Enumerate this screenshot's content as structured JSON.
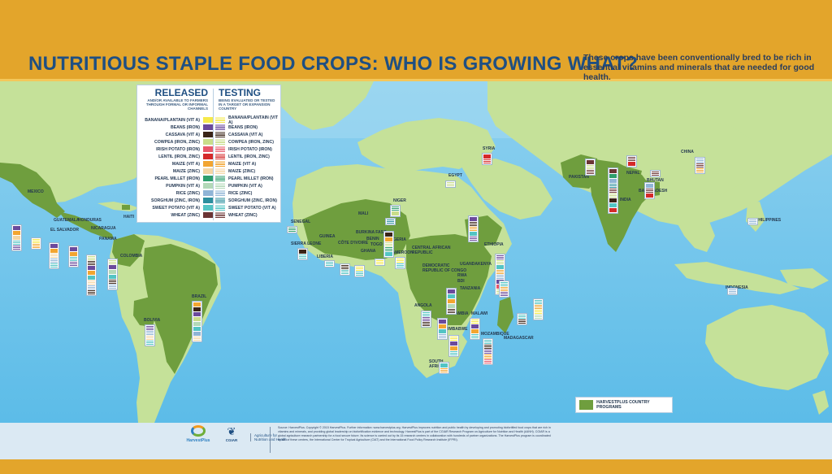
{
  "header": {
    "title": "NUTRITIOUS STAPLE FOOD CROPS: WHO IS GROWING WHAT?",
    "subtitle": "These crops have been conventionally bred to be rich in essential vitamins and minerals that are needed for good health."
  },
  "legend": {
    "released": {
      "heading": "RELEASED",
      "subheading": "AND/OR AVAILABLE TO FARMERS THROUGH FORMAL OR INFORMAL CHANNELS"
    },
    "testing": {
      "heading": "TESTING",
      "subheading": "BEING EVALUATED OR TESTED IN A TARGET OR EXPANSION COUNTRY"
    },
    "crops": [
      {
        "label": "BANANA/PLANTAIN (VIT A)",
        "testing_label": "BANANA/PLANTAIN (VIT A)",
        "color": "#f6e94a"
      },
      {
        "label": "BEANS (IRON)",
        "testing_label": "BEANS (IRON)",
        "color": "#6b4a9c"
      },
      {
        "label": "CASSAVA (VIT A)",
        "testing_label": "CASSAVA (VIT A)",
        "color": "#3a2418"
      },
      {
        "label": "COWPEA (IRON, ZINC)",
        "testing_label": "COWPEA (IRON, ZINC)",
        "color": "#c9dd8a"
      },
      {
        "label": "IRISH POTATO (IRON)",
        "testing_label": "IRISH POTATO (IRON)",
        "color": "#e8586a"
      },
      {
        "label": "LENTIL (IRON, ZINC)",
        "testing_label": "LENTIL (IRON, ZINC)",
        "color": "#d42a2a"
      },
      {
        "label": "MAIZE (VIT A)",
        "testing_label": "MAIZE (VIT A)",
        "color": "#f2a531"
      },
      {
        "label": "MAIZE (ZINC)",
        "testing_label": "MAIZE (ZINC)",
        "color": "#f4d6a4"
      },
      {
        "label": "PEARL MILLET (IRON)",
        "testing_label": "PEARL MILLET (IRON)",
        "color": "#2f9e6d"
      },
      {
        "label": "PUMPKIN (VIT A)",
        "testing_label": "PUMPKIN (VIT A)",
        "color": "#b3d9b8"
      },
      {
        "label": "RICE (ZINC)",
        "testing_label": "RICE (ZINC)",
        "color": "#8fb4d6"
      },
      {
        "label": "SORGHUM (ZINC, IRON)",
        "testing_label": "SORGHUM (ZINC, IRON)",
        "color": "#2c8f9e"
      },
      {
        "label": "SWEET POTATO (VIT A)",
        "testing_label": "SWEET POTATO (VIT A)",
        "color": "#53c4c4"
      },
      {
        "label": "WHEAT (ZINC)",
        "testing_label": "WHEAT (ZINC)",
        "color": "#6b3535"
      }
    ]
  },
  "countries": {
    "mexico": "MEXICO",
    "guatemala": "GUATEMALA",
    "honduras": "HONDURAS",
    "haiti": "HAITI",
    "el_salvador": "EL SALVADOR",
    "nicaragua": "NICARAGUA",
    "panama": "PANAMA",
    "colombia": "COLOMBIA",
    "brazil": "BRAZIL",
    "bolivia": "BOLIVIA",
    "senegal": "SENEGAL",
    "mali": "MALI",
    "niger": "NIGER",
    "burkina_faso": "BURKINA FASO",
    "guinea": "GUINEA",
    "cote_divoire": "CÔTE D'IVOIRE",
    "benin": "BENIN",
    "togo": "TOGO",
    "nigeria": "NIGERIA",
    "ghana": "GHANA",
    "sierra_leone": "SIERRA LEONE",
    "liberia": "LIBERIA",
    "cameroon": "CAMEROON",
    "car": "CENTRAL AFRICAN REPUBLIC",
    "drc": "DEMOCRATIC REPUBLIC OF CONGO",
    "egypt": "EGYPT",
    "syria": "SYRIA",
    "ethiopia": "ETHIOPIA",
    "uganda": "UGANDA",
    "kenya": "KENYA",
    "rwanda": "RWA",
    "burundi": "BDI",
    "tanzania": "TANZANIA",
    "angola": "ANGOLA",
    "zambia": "ZAMBIA",
    "malawi": "MALAWI",
    "zimbabwe": "ZIMBABWE",
    "mozambique": "MOZAMBIQUE",
    "madagascar": "MADAGASCAR",
    "south_africa": "SOUTH AFRICA",
    "pakistan": "PAKISTAN",
    "nepal": "NEPAL",
    "bhutan": "BHUTAN",
    "bangladesh": "BANGLADESH",
    "india": "INDIA",
    "china": "CHINA",
    "philippines": "PHILIPPINES",
    "indonesia": "INDONESIA"
  },
  "program_legend": "HARVESTPLUS COUNTRY PROGRAMS",
  "footer": {
    "logos": {
      "harvestplus": "HarvestPlus",
      "cgiar": "CGIAR",
      "a4nh": "Agriculture for Nutrition and Health"
    },
    "text": "Source: HarvestPlus. Copyright © 2015 HarvestPlus. Further information: www.harvestplus.org. HarvestPlus improves nutrition and public health by developing and promoting biofortified food crops that are rich in vitamins and minerals, and providing global leadership on biofortification evidence and technology. HarvestPlus is part of the CGIAR Research Program on Agriculture for Nutrition and Health (A4NH). CGIAR is a global agriculture research partnership for a food secure future. Its science is carried out by its 15 research centers in collaboration with hundreds of partner organizations. The HarvestPlus program is coordinated by two of these centers, the International Center for Tropical Agriculture (CIAT) and the International Food Policy Research Institute (IFPRI)."
  },
  "colors": {
    "ocean": "#4fb3e4",
    "ocean_light": "#8dd0ef",
    "land": "#c5e199",
    "program_land": "#6f9e3e",
    "band": "#e3a52b",
    "title": "#1f4f82"
  }
}
